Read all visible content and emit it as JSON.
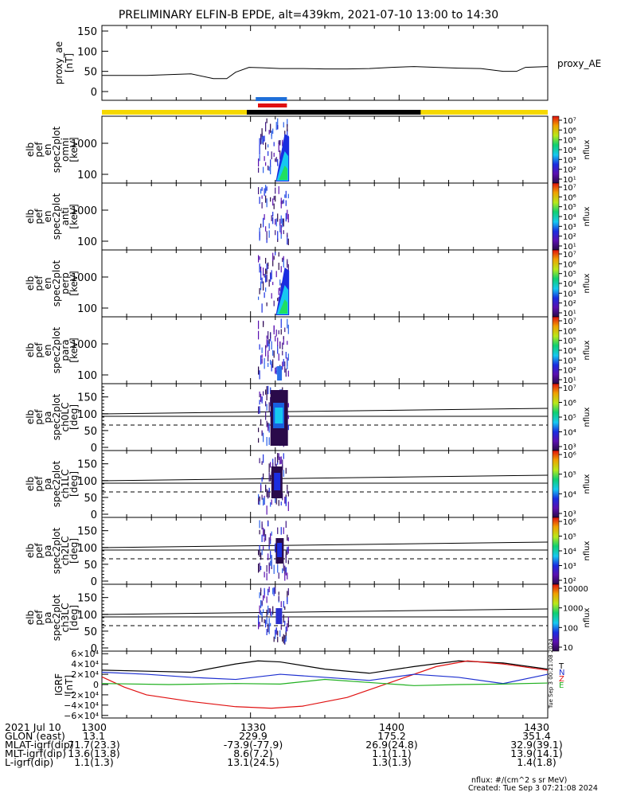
{
  "title": "PRELIMINARY ELFIN-B EPDE, alt=439km, 2021-07-10 13:00 to 14:30",
  "chart_data": [
    {
      "type": "line",
      "name": "proxy_ae",
      "ylabel": [
        "proxy_ae",
        "[nT]"
      ],
      "ylim": [
        0,
        150
      ],
      "yticks": [
        "0",
        "50",
        "100",
        "150"
      ],
      "series": [
        {
          "name": "proxy_AE",
          "x": [
            0,
            0.05,
            0.1,
            0.15,
            0.2,
            0.25,
            0.28,
            0.3,
            0.33,
            0.36,
            0.4,
            0.45,
            0.5,
            0.55,
            0.6,
            0.65,
            0.7,
            0.75,
            0.8,
            0.85,
            0.9,
            0.93,
            0.95,
            1.0
          ],
          "values": [
            40,
            40,
            40,
            42,
            44,
            32,
            32,
            48,
            60,
            59,
            57,
            57,
            56,
            56,
            57,
            60,
            62,
            60,
            58,
            57,
            50,
            50,
            60,
            62
          ]
        }
      ]
    },
    {
      "type": "bar",
      "name": "orbit-bars",
      "series": [
        {
          "name": "yellow",
          "color": "#f5d800",
          "segments": [
            [
              0,
              0.325
            ],
            [
              0.715,
              1.0
            ]
          ]
        },
        {
          "name": "black",
          "color": "#000000",
          "segments": [
            [
              0.325,
              0.715
            ]
          ]
        },
        {
          "name": "blue",
          "color": "#1e6fd9",
          "segments": [
            [
              0.345,
              0.415
            ]
          ]
        },
        {
          "name": "red",
          "color": "#e01010",
          "segments": [
            [
              0.35,
              0.415
            ]
          ]
        }
      ]
    },
    {
      "type": "heatmap",
      "ylabel": [
        "elb",
        "pef",
        "en",
        "spec2plot",
        "omni",
        "[keV]"
      ],
      "yscale": "log",
      "yticks": [
        "100",
        "1000"
      ],
      "colorbar": {
        "ticks": [
          "10¹",
          "10²",
          "10³",
          "10⁴",
          "10⁵",
          "10⁶",
          "10⁷"
        ],
        "label": "nflux"
      }
    },
    {
      "type": "heatmap",
      "ylabel": [
        "elb",
        "pef",
        "en",
        "spec2plot",
        "anti",
        "[keV]"
      ],
      "yscale": "log",
      "yticks": [
        "100",
        "1000"
      ],
      "colorbar": {
        "ticks": [
          "10¹",
          "10²",
          "10³",
          "10⁴",
          "10⁵",
          "10⁶",
          "10⁷"
        ],
        "label": "nflux"
      }
    },
    {
      "type": "heatmap",
      "ylabel": [
        "elb",
        "pef",
        "en",
        "spec2plot",
        "perp",
        "[keV]"
      ],
      "yscale": "log",
      "yticks": [
        "100",
        "1000"
      ],
      "colorbar": {
        "ticks": [
          "10¹",
          "10²",
          "10³",
          "10⁴",
          "10⁵",
          "10⁶",
          "10⁷"
        ],
        "label": "nflux"
      }
    },
    {
      "type": "heatmap",
      "ylabel": [
        "elb",
        "pef",
        "en",
        "spec2plot",
        "para",
        "[keV]"
      ],
      "yscale": "log",
      "yticks": [
        "100",
        "1000"
      ],
      "colorbar": {
        "ticks": [
          "10¹",
          "10²",
          "10³",
          "10⁴",
          "10⁵",
          "10⁶",
          "10⁷"
        ],
        "label": "nflux"
      }
    },
    {
      "type": "heatmap",
      "ylabel": [
        "elb",
        "pef",
        "pa",
        "spec2plot",
        "ch0LC",
        "[deg]"
      ],
      "ylim": [
        0,
        180
      ],
      "yticks": [
        "0",
        "50",
        "100",
        "150"
      ],
      "colorbar": {
        "ticks": [
          "10³",
          "10⁴",
          "10⁵",
          "10⁶",
          "10⁷"
        ],
        "label": "nflux"
      }
    },
    {
      "type": "heatmap",
      "ylabel": [
        "elb",
        "pef",
        "pa",
        "spec2plot",
        "ch1LC",
        "[deg]"
      ],
      "ylim": [
        0,
        180
      ],
      "yticks": [
        "0",
        "50",
        "100",
        "150"
      ],
      "colorbar": {
        "ticks": [
          "10³",
          "10⁴",
          "10⁵",
          "10⁶"
        ],
        "label": "nflux"
      }
    },
    {
      "type": "heatmap",
      "ylabel": [
        "elb",
        "pef",
        "pa",
        "spec2plot",
        "ch2LC",
        "[deg]"
      ],
      "ylim": [
        0,
        180
      ],
      "yticks": [
        "0",
        "50",
        "100",
        "150"
      ],
      "colorbar": {
        "ticks": [
          "10²",
          "10³",
          "10⁴",
          "10⁵",
          "10⁶"
        ],
        "label": "nflux"
      }
    },
    {
      "type": "heatmap",
      "ylabel": [
        "elb",
        "pef",
        "pa",
        "spec2plot",
        "ch3LC",
        "[deg]"
      ],
      "ylim": [
        0,
        180
      ],
      "yticks": [
        "0",
        "50",
        "100",
        "150"
      ],
      "colorbar": {
        "ticks": [
          "10",
          "100",
          "1000",
          "10000"
        ],
        "label": "nflux"
      }
    },
    {
      "type": "line",
      "name": "IGRF",
      "ylabel": [
        "IGRF",
        "[nT]"
      ],
      "ylim": [
        -65000,
        65000
      ],
      "yticks": [
        "−6×10⁴",
        "−4×10⁴",
        "−2×10⁴",
        "0",
        "2×10⁴",
        "4×10⁴",
        "6×10⁴"
      ],
      "series": [
        {
          "name": "T",
          "color": "#000000",
          "x": [
            0,
            0.1,
            0.2,
            0.3,
            0.35,
            0.4,
            0.5,
            0.6,
            0.7,
            0.8,
            0.9,
            1.0
          ],
          "values": [
            28000,
            26000,
            24000,
            40000,
            46000,
            44000,
            30000,
            22000,
            35000,
            46000,
            42000,
            30000
          ]
        },
        {
          "name": "Z",
          "color": "#e01010",
          "x": [
            0,
            0.05,
            0.1,
            0.2,
            0.3,
            0.38,
            0.45,
            0.55,
            0.65,
            0.75,
            0.82,
            0.9,
            1.0
          ],
          "values": [
            15000,
            -5000,
            -20000,
            -33000,
            -43000,
            -46000,
            -42000,
            -25000,
            5000,
            35000,
            46000,
            40000,
            28000
          ]
        },
        {
          "name": "N",
          "color": "#1d2fd0",
          "x": [
            0,
            0.1,
            0.2,
            0.3,
            0.4,
            0.5,
            0.6,
            0.7,
            0.8,
            0.9,
            1.0
          ],
          "values": [
            24000,
            20000,
            14000,
            10000,
            20000,
            14000,
            8000,
            20000,
            14000,
            2000,
            20000
          ]
        },
        {
          "name": "E",
          "color": "#20b020",
          "x": [
            0,
            0.15,
            0.3,
            0.4,
            0.5,
            0.6,
            0.7,
            0.8,
            0.9,
            1.0
          ],
          "values": [
            2000,
            0,
            2000,
            1000,
            10000,
            4000,
            -2000,
            0,
            1000,
            3000
          ]
        }
      ],
      "legend": [
        "T",
        "N",
        "Z",
        "E"
      ],
      "credit": "Tue Sep  3 00:21:08 2024"
    }
  ],
  "xaxis": {
    "rows": [
      {
        "label": "2021 Jul 10",
        "values": [
          "1300",
          "1330",
          "1400",
          "1430"
        ]
      },
      {
        "label": "GLON (east)",
        "values": [
          "13.1",
          "229.9",
          "175.2",
          "351.4"
        ]
      },
      {
        "label": "MLAT-igrf(dip)",
        "values": [
          "71.7(23.3)",
          "-73.9(-77.9)",
          "26.9(24.8)",
          "32.9(39.1)"
        ]
      },
      {
        "label": "MLT-igrf(dip)",
        "values": [
          "13.6(13.8)",
          "8.6(7.2)",
          "1.1(1.1)",
          "13.9(14.1)"
        ]
      },
      {
        "label": "L-igrf(dip)",
        "values": [
          "1.1(1.3)",
          "13.1(24.5)",
          "1.3(1.3)",
          "1.4(1.8)"
        ]
      }
    ]
  },
  "footer": {
    "units": "nflux: #/(cm^2 s sr MeV)",
    "created": "Created: Tue Sep  3 07:21:08 2024"
  }
}
